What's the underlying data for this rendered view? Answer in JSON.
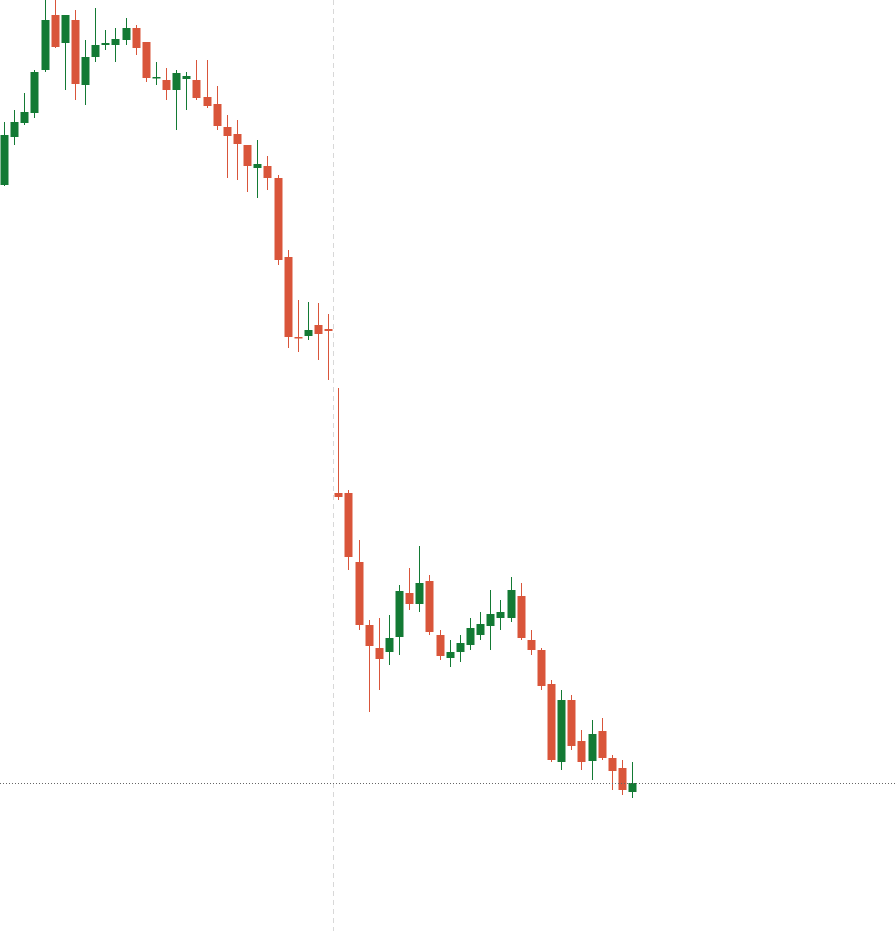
{
  "chart_data": {
    "type": "candlestick",
    "ylim": [
      0,
      931
    ],
    "up_color": "#137a34",
    "down_color": "#d9553a",
    "price_line": 148,
    "price_line_color": "#666666",
    "open": [
      746,
      794,
      808,
      818,
      861,
      916,
      888,
      911,
      846,
      874,
      886,
      886,
      891,
      903,
      889,
      853,
      851,
      841,
      852,
      851,
      834,
      827,
      804,
      797,
      786,
      763,
      765,
      753,
      674,
      594,
      595,
      606,
      602,
      438,
      438,
      369,
      306,
      283,
      279,
      294,
      338,
      327,
      350,
      296,
      273,
      279,
      286,
      296,
      305,
      313,
      313,
      335,
      291,
      281,
      247,
      169,
      231,
      190,
      170,
      200,
      173,
      163,
      139
    ],
    "high": [
      809,
      821,
      838,
      861,
      931,
      931,
      916,
      921,
      891,
      923,
      901,
      903,
      913,
      906,
      889,
      869,
      863,
      861,
      859,
      871,
      871,
      845,
      816,
      811,
      786,
      791,
      775,
      756,
      681,
      631,
      629,
      628,
      617,
      543,
      441,
      391,
      311,
      313,
      316,
      346,
      363,
      385,
      356,
      301,
      291,
      296,
      313,
      319,
      341,
      331,
      354,
      348,
      301,
      283,
      251,
      241,
      236,
      201,
      211,
      213,
      176,
      171,
      169
    ],
    "low": [
      745,
      786,
      806,
      813,
      859,
      883,
      841,
      831,
      826,
      869,
      881,
      869,
      886,
      876,
      849,
      846,
      831,
      801,
      821,
      831,
      823,
      801,
      753,
      751,
      739,
      733,
      741,
      666,
      583,
      579,
      591,
      571,
      551,
      431,
      361,
      301,
      219,
      241,
      266,
      276,
      321,
      319,
      296,
      271,
      264,
      269,
      281,
      291,
      281,
      301,
      309,
      291,
      276,
      241,
      169,
      161,
      181,
      161,
      151,
      171,
      141,
      136,
      133
    ],
    "close": [
      796,
      809,
      819,
      859,
      911,
      884,
      916,
      847,
      874,
      886,
      888,
      892,
      903,
      883,
      853,
      854,
      841,
      858,
      855,
      833,
      825,
      805,
      795,
      787,
      765,
      767,
      753,
      671,
      594,
      593,
      601,
      597,
      600,
      434,
      374,
      306,
      285,
      272,
      293,
      340,
      327,
      348,
      299,
      275,
      279,
      288,
      303,
      307,
      317,
      319,
      341,
      293,
      281,
      245,
      171,
      231,
      185,
      169,
      197,
      173,
      160,
      141,
      148
    ]
  }
}
